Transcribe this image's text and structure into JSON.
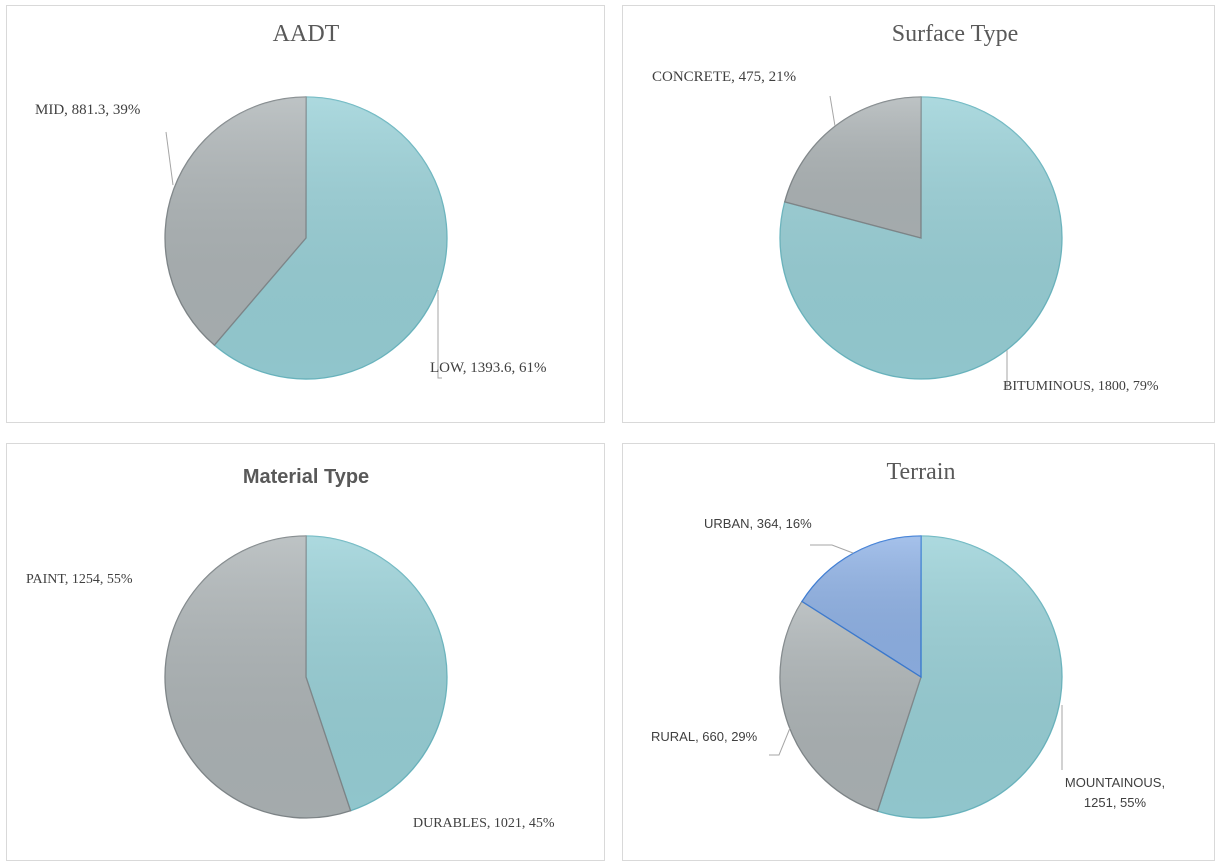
{
  "chart_data": [
    {
      "type": "pie",
      "title": "AADT",
      "categories": [
        "LOW",
        "MID"
      ],
      "values": [
        1393.6,
        881.3
      ],
      "value_labels": [
        "LOW, 1393.6, 61%",
        "MID, 881.3, 39%"
      ],
      "colors": [
        "#98d0d7",
        "#adb4b6"
      ]
    },
    {
      "type": "pie",
      "title": "Surface  Type",
      "categories": [
        "BITUMINOUS",
        "CONCRETE"
      ],
      "values": [
        1800,
        475
      ],
      "value_labels": [
        "BITUMINOUS, 1800, 79%",
        "CONCRETE, 475, 21%"
      ],
      "colors": [
        "#98d0d7",
        "#adb4b6"
      ]
    },
    {
      "type": "pie",
      "title": "Material Type",
      "categories": [
        "DURABLES",
        "PAINT"
      ],
      "values": [
        1021,
        1254
      ],
      "value_labels": [
        "DURABLES, 1021, 45%",
        "PAINT, 1254, 55%"
      ],
      "colors": [
        "#98d0d7",
        "#adb4b6"
      ]
    },
    {
      "type": "pie",
      "title": "Terrain",
      "categories": [
        "MOUNTAINOUS",
        "RURAL",
        "URBAN"
      ],
      "values": [
        1251,
        660,
        364
      ],
      "value_labels": [
        "MOUNTAINOUS, 1251, 55%",
        "RURAL, 660, 29%",
        "URBAN, 364, 16%"
      ],
      "colors": [
        "#98d0d7",
        "#adb4b6",
        "#8fb2e6"
      ]
    }
  ]
}
